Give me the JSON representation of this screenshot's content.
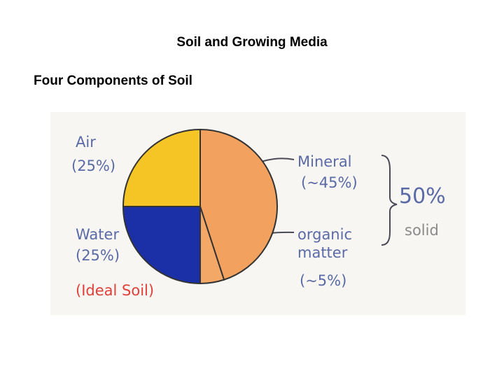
{
  "title": "Soil and Growing Media",
  "subtitle": "Four Components of Soil",
  "chart_data": {
    "type": "pie",
    "categories": [
      "Mineral",
      "organic matter",
      "Water",
      "Air"
    ],
    "values": [
      45,
      5,
      25,
      25
    ],
    "value_labels": [
      "(~45%)",
      "(~5%)",
      "(25%)",
      "(25%)"
    ],
    "colors": [
      "#f2a25e",
      "#f4a868",
      "#1b2fa6",
      "#f4c524"
    ],
    "annotations": [
      "50%",
      "solid",
      "(Ideal Soil)"
    ]
  }
}
